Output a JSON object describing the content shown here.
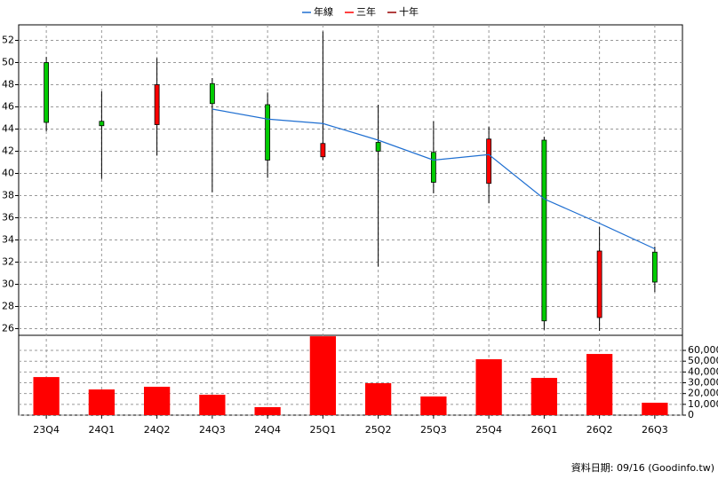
{
  "chart_data": {
    "type": "candlestick",
    "categories": [
      "23Q4",
      "24Q1",
      "24Q2",
      "24Q3",
      "24Q4",
      "25Q1",
      "25Q2",
      "25Q3",
      "25Q4",
      "26Q1",
      "26Q2",
      "26Q3"
    ],
    "open": [
      50.0,
      44.7,
      44.4,
      48.1,
      46.2,
      41.5,
      42.8,
      41.9,
      39.1,
      43.0,
      27.0,
      32.9
    ],
    "high": [
      50.5,
      47.4,
      50.4,
      48.6,
      47.3,
      52.8,
      46.2,
      44.7,
      44.2,
      43.3,
      35.2,
      33.4
    ],
    "low": [
      43.8,
      39.5,
      41.6,
      38.3,
      39.6,
      41.2,
      31.6,
      38.2,
      37.3,
      25.9,
      25.8,
      29.3
    ],
    "close": [
      44.6,
      44.3,
      48.0,
      46.3,
      41.2,
      42.7,
      42.0,
      39.2,
      43.1,
      26.7,
      33.0,
      30.2
    ],
    "up_color": "#ff0000",
    "down_color": "#00cc00",
    "series": [
      {
        "name": "年線",
        "color": "#1f6fd1",
        "values": [
          null,
          null,
          null,
          45.8,
          44.9,
          44.5,
          43.0,
          41.2,
          41.7,
          37.7,
          35.5,
          33.2
        ]
      },
      {
        "name": "三年",
        "color": "#ff0000",
        "values": [
          null,
          null,
          null,
          null,
          null,
          null,
          null,
          null,
          null,
          null,
          null,
          null
        ]
      },
      {
        "name": "十年",
        "color": "#990000",
        "values": [
          null,
          null,
          null,
          null,
          null,
          null,
          null,
          null,
          null,
          null,
          null,
          null
        ]
      }
    ],
    "ylim": [
      25.4,
      53.4
    ],
    "yticks": [
      26,
      28,
      30,
      32,
      34,
      36,
      38,
      40,
      42,
      44,
      46,
      48,
      50,
      52
    ],
    "grid": true,
    "volume": {
      "type": "bar",
      "color": "#ff0000",
      "values": [
        35300,
        23800,
        26300,
        18900,
        7400,
        73100,
        29600,
        17300,
        51800,
        34500,
        56700,
        11500
      ],
      "ylim": [
        0,
        74000
      ],
      "yticks": [
        0,
        {
          "value": 10000,
          "label": "10,000"
        },
        {
          "value": 20000,
          "label": "20,000"
        },
        {
          "value": 30000,
          "label": "30,000"
        },
        {
          "value": 40000,
          "label": "40,000"
        },
        {
          "value": 50000,
          "label": "50,000"
        },
        {
          "value": 60000,
          "label": "60,000"
        }
      ]
    },
    "source": "資料日期: 09/16 (Goodinfo.tw)"
  }
}
